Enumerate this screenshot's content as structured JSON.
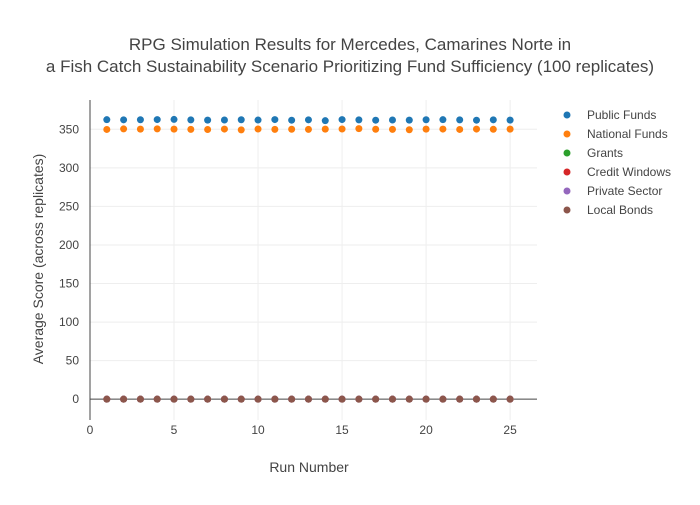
{
  "chart_data": {
    "type": "scatter",
    "title": "RPG Simulation Results for Mercedes, Camarines Norte in",
    "subtitle": "a Fish Catch Sustainability Scenario Prioritizing Fund Sufficiency (100 replicates)",
    "xlabel": "Run Number",
    "ylabel": "Average Score (across replicates)",
    "xlim": [
      0,
      26.6
    ],
    "ylim": [
      -27,
      388
    ],
    "xticks": [
      0,
      5,
      10,
      15,
      20,
      25
    ],
    "yticks": [
      0,
      50,
      100,
      150,
      200,
      250,
      300,
      350
    ],
    "grid": true,
    "legend_position": "right",
    "x": [
      1,
      2,
      3,
      4,
      5,
      6,
      7,
      8,
      9,
      10,
      11,
      12,
      13,
      14,
      15,
      16,
      17,
      18,
      19,
      20,
      21,
      22,
      23,
      24,
      25
    ],
    "series": [
      {
        "name": "Public Funds",
        "color": "#1f77b4",
        "values": [
          362.5,
          362.3,
          362.4,
          362.6,
          362.8,
          362.2,
          361.9,
          362.1,
          362.4,
          362.0,
          362.6,
          361.8,
          362.3,
          361.2,
          362.6,
          362.2,
          361.8,
          362.1,
          361.9,
          362.4,
          362.5,
          362.2,
          361.8,
          362.3,
          361.9
        ]
      },
      {
        "name": "National Funds",
        "color": "#ff7f0e",
        "values": [
          349.8,
          350.5,
          350.2,
          350.6,
          350.2,
          349.9,
          349.7,
          350.3,
          349.3,
          350.4,
          349.9,
          350.1,
          349.9,
          350.2,
          350.4,
          350.9,
          350.1,
          349.9,
          349.4,
          350.2,
          350.3,
          349.8,
          350.3,
          350.0,
          350.2
        ]
      },
      {
        "name": "Grants",
        "color": "#2ca02c",
        "values": [
          0,
          0,
          0,
          0,
          0,
          0,
          0,
          0,
          0,
          0,
          0,
          0,
          0,
          0,
          0,
          0,
          0,
          0,
          0,
          0,
          0,
          0,
          0,
          0,
          0
        ]
      },
      {
        "name": "Credit Windows",
        "color": "#d62728",
        "values": [
          0,
          0,
          0,
          0,
          0,
          0,
          0,
          0,
          0,
          0,
          0,
          0,
          0,
          0,
          0,
          0,
          0,
          0,
          0,
          0,
          0,
          0,
          0,
          0,
          0
        ]
      },
      {
        "name": "Private Sector",
        "color": "#9467bd",
        "values": [
          0,
          0,
          0,
          0,
          0,
          0,
          0,
          0,
          0,
          0,
          0,
          0,
          0,
          0,
          0,
          0,
          0,
          0,
          0,
          0,
          0,
          0,
          0,
          0,
          0
        ]
      },
      {
        "name": "Local Bonds",
        "color": "#8c564b",
        "values": [
          0,
          0,
          0,
          0,
          0,
          0,
          0,
          0,
          0,
          0,
          0,
          0,
          0,
          0,
          0,
          0,
          0,
          0,
          0,
          0,
          0,
          0,
          0,
          0,
          0
        ]
      }
    ]
  }
}
